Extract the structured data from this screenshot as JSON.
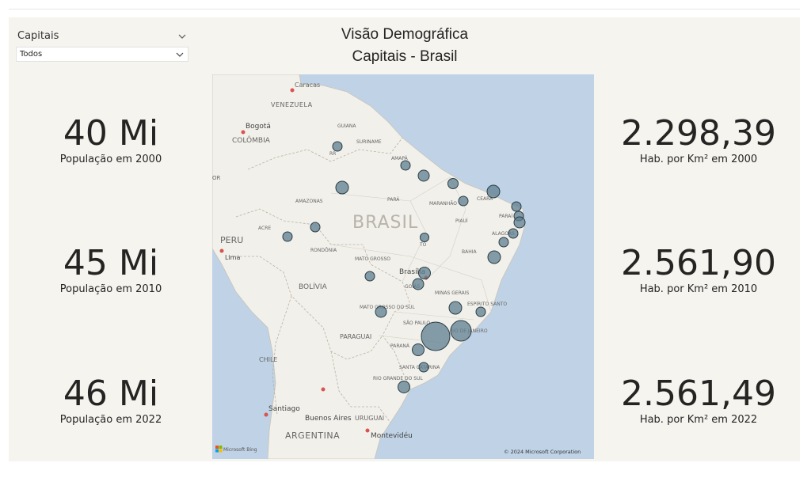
{
  "slicer": {
    "title": "Capitais",
    "selected": "Todos"
  },
  "title": {
    "line1": "Visão Demográfica",
    "line2": "Capitais - Brasil"
  },
  "kpis_left": [
    {
      "value": "40 Mi",
      "label": "População em 2000"
    },
    {
      "value": "45 Mi",
      "label": "População em 2010"
    },
    {
      "value": "46 Mi",
      "label": "População em 2022"
    }
  ],
  "kpis_right": [
    {
      "value": "2.298,39",
      "label": "Hab. por Km² em 2000"
    },
    {
      "value": "2.561,90",
      "label": "Hab. por Km² em 2010"
    },
    {
      "value": "2.561,49",
      "label": "Hab. por Km² em 2022"
    }
  ],
  "map": {
    "labels": {
      "caracas": "Caracas",
      "venezuela": "VENEZUELA",
      "bogota": "Bogotá",
      "colombia": "COLÔMBIA",
      "guiana": "GUIANA",
      "suriname": "SURINAME",
      "rr": "RR",
      "amapa": "AMAPÁ",
      "amazonas": "AMAZONAS",
      "para": "PARÁ",
      "maranhao": "MARANHÃO",
      "piaui": "PIAUÍ",
      "ceara": "CEARÁ",
      "paraiba": "PARAÍ",
      "alagoas": "ALAGOAS",
      "brasil": "BRASIL",
      "acre": "ACRE",
      "rondonia": "RONDÔNIA",
      "mato_grosso": "MATO GROSSO",
      "bahia": "BAHIA",
      "to": "TO",
      "peru": "PERU",
      "lima": "Lima",
      "bolivia": "BOLÍVIA",
      "brasilia": "Brasília",
      "goias": "GOIÁS",
      "minas": "MINAS GERAIS",
      "ms": "MATO GROSSO DO SUL",
      "espirito": "ESPÍRITO SANTO",
      "sao_paulo": "SÃO PAULO",
      "rio": "RIO DE JANEIRO",
      "paraguai": "PARAGUAI",
      "parana": "PARANÁ",
      "chile": "CHILE",
      "santa_catarina": "SANTA CATARINA",
      "rio_grande": "RIO GRANDE DO SUL",
      "santiago": "Santiago",
      "buenos_aires": "Buenos Aires",
      "uruguai": "URUGUAI",
      "argentina": "ARGENTINA",
      "montevideu": "Montevidéu",
      "or": "OR"
    },
    "attribution": "© 2024 Microsoft Corporation",
    "provider": "Microsoft Bing",
    "colors": {
      "ocean": "#bfd2e6",
      "land": "#f2f0ea",
      "bubble": "#5e7f8f",
      "bubble_stroke": "#2a3d47"
    },
    "bubbles": [
      {
        "city": "Boa Vista",
        "size": 6
      },
      {
        "city": "Macapá",
        "size": 6
      },
      {
        "city": "Belém",
        "size": 7
      },
      {
        "city": "Manaus",
        "size": 8
      },
      {
        "city": "São Luís",
        "size": 6.5
      },
      {
        "city": "Teresina",
        "size": 6
      },
      {
        "city": "Fortaleza",
        "size": 8
      },
      {
        "city": "Natal",
        "size": 6
      },
      {
        "city": "João Pessoa",
        "size": 6
      },
      {
        "city": "Recife",
        "size": 7
      },
      {
        "city": "Maceió",
        "size": 6
      },
      {
        "city": "Aracaju",
        "size": 6
      },
      {
        "city": "Salvador",
        "size": 8
      },
      {
        "city": "Rio Branco",
        "size": 6
      },
      {
        "city": "Porto Velho",
        "size": 6
      },
      {
        "city": "Palmas",
        "size": 5.5
      },
      {
        "city": "Cuiabá",
        "size": 6
      },
      {
        "city": "Brasília",
        "size": 7.5
      },
      {
        "city": "Goiânia",
        "size": 7
      },
      {
        "city": "Campo Grande",
        "size": 7
      },
      {
        "city": "Belo Horizonte",
        "size": 8
      },
      {
        "city": "Vitória",
        "size": 6
      },
      {
        "city": "São Paulo",
        "size": 18
      },
      {
        "city": "Rio de Janeiro",
        "size": 13
      },
      {
        "city": "Curitiba",
        "size": 7.5
      },
      {
        "city": "Florianópolis",
        "size": 6
      },
      {
        "city": "Porto Alegre",
        "size": 7.5
      }
    ]
  }
}
